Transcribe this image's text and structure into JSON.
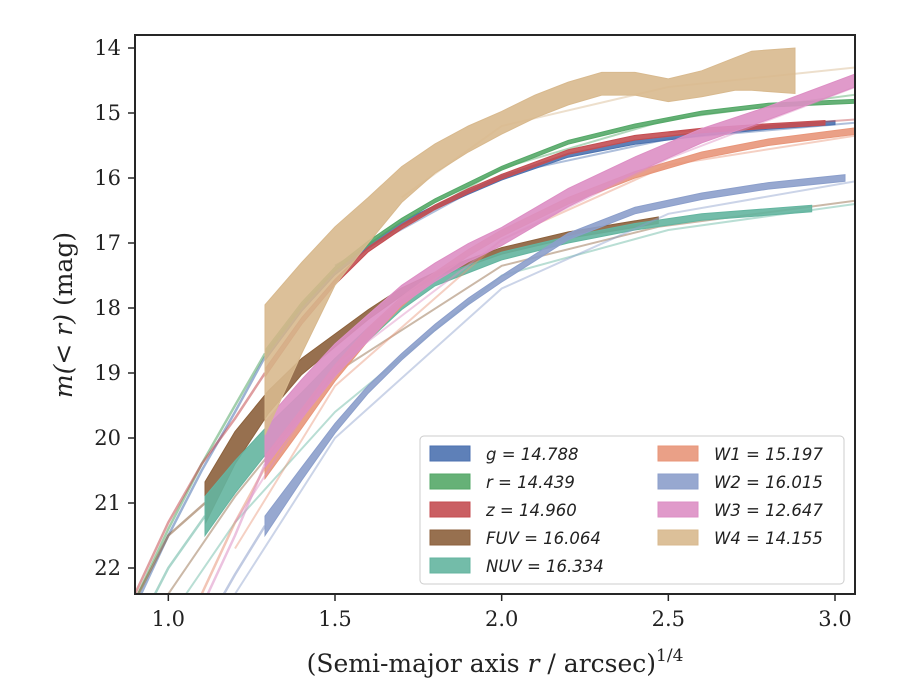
{
  "chart_data": {
    "type": "line",
    "xlabel": "(Semi-major axis r / arcsec)",
    "xlabel_parts": {
      "prefix": "(Semi-major axis ",
      "var": "r",
      "suffix": " / arcsec)",
      "sup": "1/4"
    },
    "ylabel": "m(< r) (mag)",
    "ylabel_parts": {
      "m": "m",
      "inner": "(< r)",
      "unit": "(mag)"
    },
    "xlim": [
      0.9,
      3.06
    ],
    "ylim": [
      22.4,
      13.8
    ],
    "y_inverted": true,
    "x_ticks": [
      1.0,
      1.5,
      2.0,
      2.5,
      3.0
    ],
    "x_tick_labels": [
      "1.0",
      "1.5",
      "2.0",
      "2.5",
      "3.0"
    ],
    "y_ticks": [
      14,
      15,
      16,
      17,
      18,
      19,
      20,
      21,
      22
    ],
    "y_tick_labels": [
      "14",
      "15",
      "16",
      "17",
      "18",
      "19",
      "20",
      "21",
      "22"
    ],
    "grid": false,
    "legend_position": "lower-right",
    "series": [
      {
        "name": "g",
        "legend_label": "g = 14.788",
        "color": "#4c72b0",
        "x": [
          1.29,
          1.4,
          1.5,
          1.6,
          1.7,
          1.8,
          1.9,
          2.0,
          2.2,
          2.4,
          2.6,
          2.8,
          3.0
        ],
        "y": [
          18.75,
          18.0,
          17.45,
          17.05,
          16.7,
          16.45,
          16.22,
          16.0,
          15.65,
          15.45,
          15.32,
          15.22,
          15.15
        ],
        "width": [
          0.12,
          0.1,
          0.08,
          0.07,
          0.06,
          0.06,
          0.06,
          0.06,
          0.06,
          0.06,
          0.06,
          0.06,
          0.06
        ],
        "ext_x": [
          0.9,
          1.0,
          1.1,
          1.2,
          1.29
        ],
        "ext_y": [
          22.6,
          21.5,
          20.5,
          19.6,
          18.75
        ],
        "model_x": [
          1.5,
          2.0,
          2.5,
          3.06
        ],
        "model_y": [
          17.35,
          15.95,
          15.4,
          15.15
        ]
      },
      {
        "name": "r",
        "legend_label": "r = 14.439",
        "color": "#55a868",
        "x": [
          1.29,
          1.4,
          1.5,
          1.6,
          1.7,
          1.8,
          1.9,
          2.0,
          2.2,
          2.4,
          2.6,
          2.8,
          3.06
        ],
        "y": [
          18.7,
          17.95,
          17.4,
          17.0,
          16.65,
          16.35,
          16.1,
          15.85,
          15.45,
          15.2,
          15.0,
          14.88,
          14.82
        ],
        "width": [
          0.1,
          0.08,
          0.06,
          0.06,
          0.06,
          0.06,
          0.06,
          0.06,
          0.06,
          0.06,
          0.06,
          0.06,
          0.06
        ],
        "ext_x": [
          0.9,
          1.0,
          1.1,
          1.2,
          1.29
        ],
        "ext_y": [
          22.5,
          21.4,
          20.4,
          19.5,
          18.7
        ],
        "model_x": [
          1.5,
          2.0,
          2.5,
          3.06
        ],
        "model_y": [
          17.35,
          15.85,
          15.1,
          14.72
        ]
      },
      {
        "name": "z",
        "legend_label": "z = 14.960",
        "color": "#c44e52",
        "x": [
          1.29,
          1.4,
          1.5,
          1.6,
          1.7,
          1.8,
          1.9,
          2.0,
          2.2,
          2.4,
          2.6,
          2.8,
          2.97
        ],
        "y": [
          19.0,
          18.2,
          17.6,
          17.1,
          16.75,
          16.45,
          16.2,
          15.98,
          15.6,
          15.38,
          15.27,
          15.2,
          15.15
        ],
        "width": [
          0.12,
          0.1,
          0.08,
          0.07,
          0.07,
          0.07,
          0.07,
          0.07,
          0.07,
          0.07,
          0.07,
          0.07,
          0.07
        ],
        "ext_x": [
          0.9,
          1.0,
          1.1,
          1.2,
          1.29
        ],
        "ext_y": [
          22.4,
          21.3,
          20.4,
          19.7,
          19.0
        ],
        "model_x": [
          2.5,
          3.06
        ],
        "model_y": [
          15.3,
          15.1
        ]
      },
      {
        "name": "FUV",
        "legend_label": "FUV = 16.064",
        "color": "#8c613c",
        "x": [
          1.11,
          1.2,
          1.3,
          1.4,
          1.5,
          1.6,
          1.7,
          1.8,
          1.9,
          2.0,
          2.2,
          2.47
        ],
        "y": [
          21.0,
          20.15,
          19.45,
          18.9,
          18.5,
          18.1,
          17.75,
          17.5,
          17.3,
          17.12,
          16.88,
          16.65
        ],
        "width": [
          0.65,
          0.5,
          0.35,
          0.25,
          0.2,
          0.15,
          0.12,
          0.1,
          0.1,
          0.1,
          0.1,
          0.1
        ],
        "ext_x": [
          0.9,
          1.0,
          1.11
        ],
        "ext_y": [
          22.5,
          21.5,
          21.0
        ],
        "model_x": [
          1.0,
          1.2,
          1.5,
          2.0,
          2.47,
          3.06
        ],
        "model_y": [
          22.4,
          20.9,
          19.0,
          17.35,
          16.75,
          16.35
        ]
      },
      {
        "name": "NUV",
        "legend_label": "NUV = 16.334",
        "color": "#64b5a0",
        "x": [
          1.11,
          1.2,
          1.3,
          1.4,
          1.5,
          1.6,
          1.7,
          1.8,
          1.9,
          2.0,
          2.2,
          2.4,
          2.6,
          2.93
        ],
        "y": [
          21.2,
          20.6,
          20.0,
          19.45,
          18.9,
          18.4,
          17.95,
          17.6,
          17.4,
          17.2,
          16.95,
          16.75,
          16.6,
          16.47
        ],
        "width": [
          0.6,
          0.5,
          0.4,
          0.3,
          0.25,
          0.2,
          0.15,
          0.12,
          0.12,
          0.12,
          0.1,
          0.1,
          0.1,
          0.1
        ],
        "ext_x": [
          0.9,
          1.0,
          1.11
        ],
        "ext_y": [
          23.0,
          22.0,
          21.2
        ],
        "model_x": [
          1.0,
          1.2,
          1.5,
          2.0,
          2.5,
          3.06
        ],
        "model_y": [
          22.8,
          21.3,
          19.6,
          17.5,
          16.8,
          16.4
        ]
      },
      {
        "name": "W1",
        "legend_label": "W1 = 15.197",
        "color": "#e8967a",
        "x": [
          1.29,
          1.4,
          1.5,
          1.6,
          1.7,
          1.8,
          1.9,
          2.0,
          2.2,
          2.4,
          2.6,
          2.8,
          3.06
        ],
        "y": [
          20.45,
          19.7,
          19.0,
          18.4,
          17.9,
          17.5,
          17.15,
          16.85,
          16.35,
          15.95,
          15.65,
          15.45,
          15.28
        ],
        "width": [
          0.35,
          0.3,
          0.25,
          0.2,
          0.15,
          0.1,
          0.1,
          0.1,
          0.1,
          0.1,
          0.1,
          0.1,
          0.1
        ],
        "ext_x": [
          1.1,
          1.2,
          1.29
        ],
        "ext_y": [
          22.4,
          21.3,
          20.45
        ],
        "model_x": [
          1.2,
          1.5,
          2.0,
          2.5,
          3.06
        ],
        "model_y": [
          21.7,
          19.2,
          16.95,
          15.8,
          15.35
        ]
      },
      {
        "name": "W2",
        "legend_label": "W2 = 16.015",
        "color": "#8c9fcb",
        "x": [
          1.29,
          1.4,
          1.5,
          1.6,
          1.7,
          1.8,
          1.9,
          2.0,
          2.2,
          2.4,
          2.6,
          2.8,
          3.03
        ],
        "y": [
          21.35,
          20.55,
          19.85,
          19.25,
          18.75,
          18.3,
          17.9,
          17.55,
          16.9,
          16.5,
          16.28,
          16.12,
          16.0
        ],
        "width": [
          0.3,
          0.2,
          0.15,
          0.12,
          0.1,
          0.1,
          0.1,
          0.1,
          0.1,
          0.1,
          0.1,
          0.1,
          0.1
        ],
        "ext_x": [
          1.1,
          1.2,
          1.29
        ],
        "ext_y": [
          23.0,
          22.1,
          21.35
        ],
        "model_x": [
          1.2,
          1.5,
          2.0,
          2.5,
          3.06
        ],
        "model_y": [
          22.4,
          20.0,
          17.7,
          16.55,
          16.05
        ]
      },
      {
        "name": "W3",
        "legend_label": "W3 = 12.647",
        "color": "#dd8fc4",
        "x": [
          1.29,
          1.4,
          1.5,
          1.6,
          1.7,
          1.8,
          1.9,
          2.0,
          2.2,
          2.4,
          2.6,
          2.8,
          3.06
        ],
        "y": [
          20.1,
          19.4,
          18.8,
          18.3,
          17.8,
          17.45,
          17.15,
          16.9,
          16.3,
          15.8,
          15.35,
          15.0,
          14.5
        ],
        "width": [
          0.7,
          0.6,
          0.5,
          0.4,
          0.3,
          0.28,
          0.28,
          0.28,
          0.28,
          0.25,
          0.22,
          0.2,
          0.2
        ],
        "ext_x": [
          1.1,
          1.2,
          1.29
        ],
        "ext_y": [
          22.6,
          21.5,
          20.4
        ],
        "model_x": [
          1.2,
          1.5,
          2.0,
          2.5,
          3.06
        ],
        "model_y": [
          21.3,
          18.9,
          16.95,
          15.7,
          14.6
        ]
      },
      {
        "name": "W4",
        "legend_label": "W4 = 14.155",
        "color": "#d8b98e",
        "x": [
          1.29,
          1.4,
          1.5,
          1.6,
          1.7,
          1.8,
          1.9,
          2.0,
          2.1,
          2.2,
          2.3,
          2.4,
          2.5,
          2.6,
          2.7,
          2.75,
          2.88
        ],
        "y": [
          18.95,
          18.0,
          17.2,
          16.65,
          16.1,
          15.7,
          15.4,
          15.15,
          14.9,
          14.7,
          14.55,
          14.55,
          14.65,
          14.55,
          14.4,
          14.35,
          14.35
        ],
        "width": [
          2.0,
          1.4,
          0.9,
          0.7,
          0.55,
          0.45,
          0.4,
          0.35,
          0.35,
          0.35,
          0.35,
          0.35,
          0.35,
          0.4,
          0.5,
          0.6,
          0.7
        ],
        "ext_x": [],
        "ext_y": [],
        "model_x": [
          1.7,
          2.0,
          2.5,
          3.06
        ],
        "model_y": [
          16.3,
          15.2,
          14.6,
          14.3
        ]
      }
    ]
  }
}
